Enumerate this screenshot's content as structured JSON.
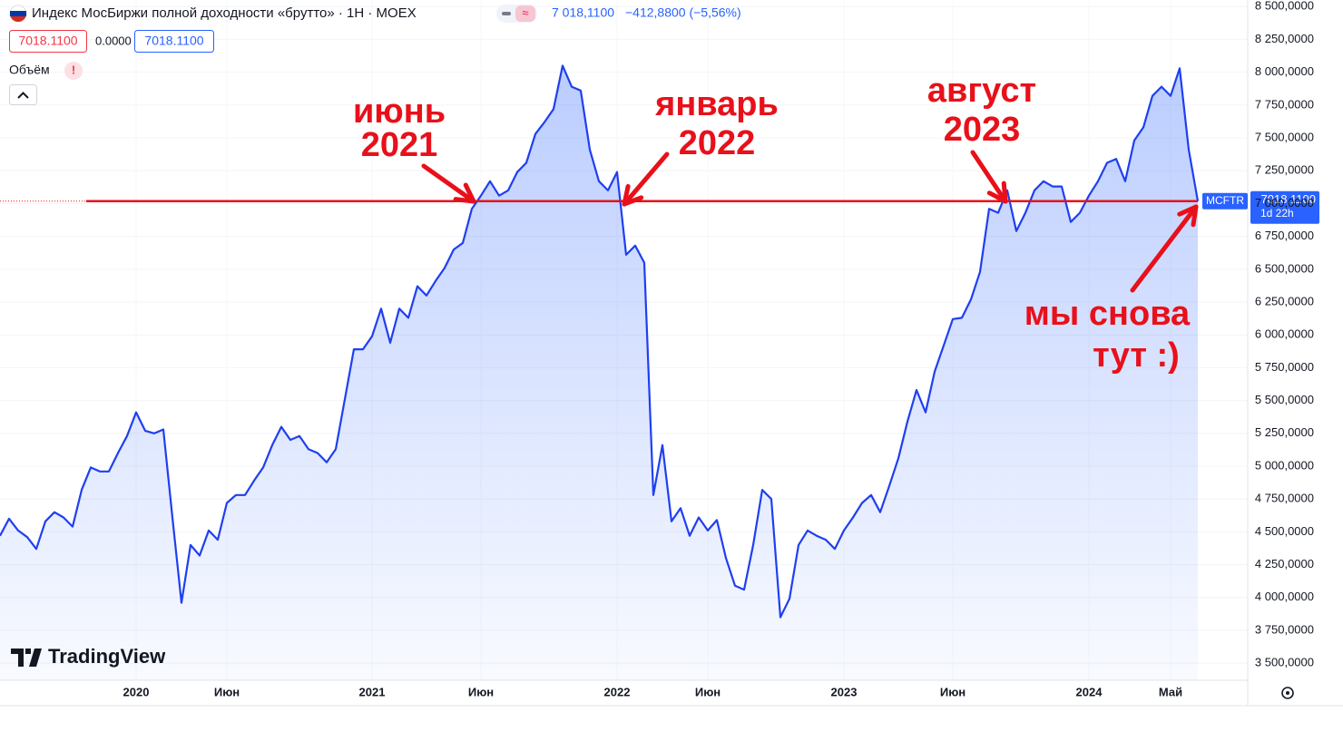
{
  "header": {
    "title": "Индекс МосБиржи полной доходности «брутто» · 1Н · MOEX",
    "quote": "7 018,1100",
    "change": "−412,8800 (−5,56%)",
    "inputs": [
      "7018.1100",
      "0.0000",
      "7018.1100"
    ],
    "volume": "Объём",
    "warning": "!",
    "brand": "TradingView"
  },
  "chart_data": {
    "type": "area",
    "symbol": "MCFTR",
    "last_label": "7018,1100",
    "countdown": "1d 22h",
    "color": "#1f3ff0",
    "grid": true,
    "hline": 7018.11,
    "annotations": [
      [
        "июнь",
        "2021"
      ],
      [
        "январь",
        "2022"
      ],
      [
        "август",
        "2023"
      ],
      [
        "мы снова",
        "тут :)"
      ]
    ],
    "categories": [
      null,
      null,
      null,
      null,
      null,
      null,
      null,
      null,
      null,
      null,
      null,
      null,
      null,
      null,
      null,
      "2020",
      null,
      null,
      null,
      null,
      null,
      null,
      null,
      null,
      null,
      "Июн",
      null,
      null,
      null,
      null,
      null,
      null,
      null,
      null,
      null,
      null,
      null,
      null,
      null,
      null,
      null,
      "2021",
      null,
      null,
      null,
      null,
      null,
      null,
      null,
      null,
      null,
      null,
      null,
      "Июн",
      null,
      null,
      null,
      null,
      null,
      null,
      null,
      null,
      null,
      null,
      null,
      null,
      null,
      null,
      "2022",
      null,
      null,
      null,
      null,
      null,
      null,
      null,
      null,
      null,
      "Июн",
      null,
      null,
      null,
      null,
      null,
      null,
      null,
      null,
      null,
      null,
      null,
      null,
      null,
      null,
      "2023",
      null,
      null,
      null,
      null,
      null,
      null,
      null,
      null,
      null,
      null,
      null,
      "Июн",
      null,
      null,
      null,
      null,
      null,
      null,
      null,
      null,
      null,
      null,
      null,
      null,
      null,
      null,
      "2024",
      null,
      null,
      null,
      null,
      null,
      null,
      null,
      null,
      "Май",
      null,
      null,
      null
    ],
    "values": [
      4470,
      4600,
      4510,
      4460,
      4370,
      4580,
      4650,
      4610,
      4540,
      4820,
      4990,
      4960,
      4960,
      5100,
      5230,
      5410,
      5270,
      5250,
      5280,
      4610,
      3960,
      4400,
      4320,
      4510,
      4440,
      4720,
      4780,
      4780,
      4890,
      4990,
      5160,
      5300,
      5200,
      5230,
      5130,
      5100,
      5030,
      5130,
      5510,
      5890,
      5890,
      5990,
      6200,
      5940,
      6200,
      6130,
      6370,
      6300,
      6410,
      6510,
      6650,
      6700,
      6960,
      7060,
      7170,
      7060,
      7100,
      7240,
      7310,
      7530,
      7620,
      7720,
      8050,
      7890,
      7860,
      7410,
      7170,
      7100,
      7240,
      6610,
      6680,
      6550,
      4780,
      5160,
      4580,
      4680,
      4470,
      4610,
      4510,
      4590,
      4300,
      4090,
      4060,
      4400,
      4820,
      4750,
      3850,
      3990,
      4400,
      4510,
      4470,
      4440,
      4370,
      4510,
      4610,
      4720,
      4780,
      4650,
      4850,
      5060,
      5340,
      5580,
      5410,
      5720,
      5920,
      6120,
      6130,
      6270,
      6480,
      6960,
      6930,
      7100,
      6790,
      6930,
      7100,
      7170,
      7130,
      7130,
      6860,
      6930,
      7060,
      7170,
      7310,
      7340,
      7170,
      7480,
      7580,
      7820,
      7890,
      7820,
      8030,
      7410,
      7018.11
    ],
    "ylim": [
      3370,
      8550
    ],
    "yticks": [
      {
        "value": 3500,
        "label": "3 500,0000"
      },
      {
        "value": 3750,
        "label": "3 750,0000"
      },
      {
        "value": 4000,
        "label": "4 000,0000"
      },
      {
        "value": 4250,
        "label": "4 250,0000"
      },
      {
        "value": 4500,
        "label": "4 500,0000"
      },
      {
        "value": 4750,
        "label": "4 750,0000"
      },
      {
        "value": 5000,
        "label": "5 000,0000"
      },
      {
        "value": 5250,
        "label": "5 250,0000"
      },
      {
        "value": 5500,
        "label": "5 500,0000"
      },
      {
        "value": 5750,
        "label": "5 750,0000"
      },
      {
        "value": 6000,
        "label": "6 000,0000"
      },
      {
        "value": 6250,
        "label": "6 250,0000"
      },
      {
        "value": 6500,
        "label": "6 500,0000"
      },
      {
        "value": 6750,
        "label": "6 750,0000"
      },
      {
        "value": 7000,
        "label": "7 000,0000"
      },
      {
        "value": 7250,
        "label": "7 250,0000"
      },
      {
        "value": 7500,
        "label": "7 500,0000"
      },
      {
        "value": 7750,
        "label": "7 750,0000"
      },
      {
        "value": 8000,
        "label": "8 000,0000"
      },
      {
        "value": 8250,
        "label": "8 250,0000"
      },
      {
        "value": 8500,
        "label": "8 500,0000"
      }
    ]
  }
}
